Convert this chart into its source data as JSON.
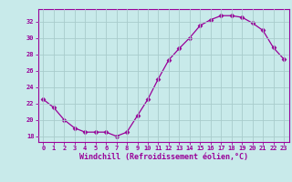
{
  "x": [
    0,
    1,
    2,
    3,
    4,
    5,
    6,
    7,
    8,
    9,
    10,
    11,
    12,
    13,
    14,
    15,
    16,
    17,
    18,
    19,
    20,
    21,
    22,
    23
  ],
  "y": [
    22.5,
    21.5,
    20.0,
    19.0,
    18.5,
    18.5,
    18.5,
    18.0,
    18.5,
    20.5,
    22.5,
    25.0,
    27.3,
    28.7,
    30.0,
    31.5,
    32.2,
    32.7,
    32.7,
    32.5,
    31.8,
    30.9,
    28.8,
    27.4
  ],
  "line_color": "#990099",
  "marker": "D",
  "marker_size": 2.5,
  "bg_color": "#c8eaea",
  "grid_color": "#a8cccc",
  "xlabel": "Windchill (Refroidissement éolien,°C)",
  "ylabel_ticks": [
    18,
    20,
    22,
    24,
    26,
    28,
    30,
    32
  ],
  "xlim": [
    -0.5,
    23.5
  ],
  "ylim": [
    17.3,
    33.5
  ],
  "tick_color": "#990099",
  "label_color": "#990099",
  "font_family": "monospace",
  "tick_fontsize": 5.0,
  "xlabel_fontsize": 6.0
}
